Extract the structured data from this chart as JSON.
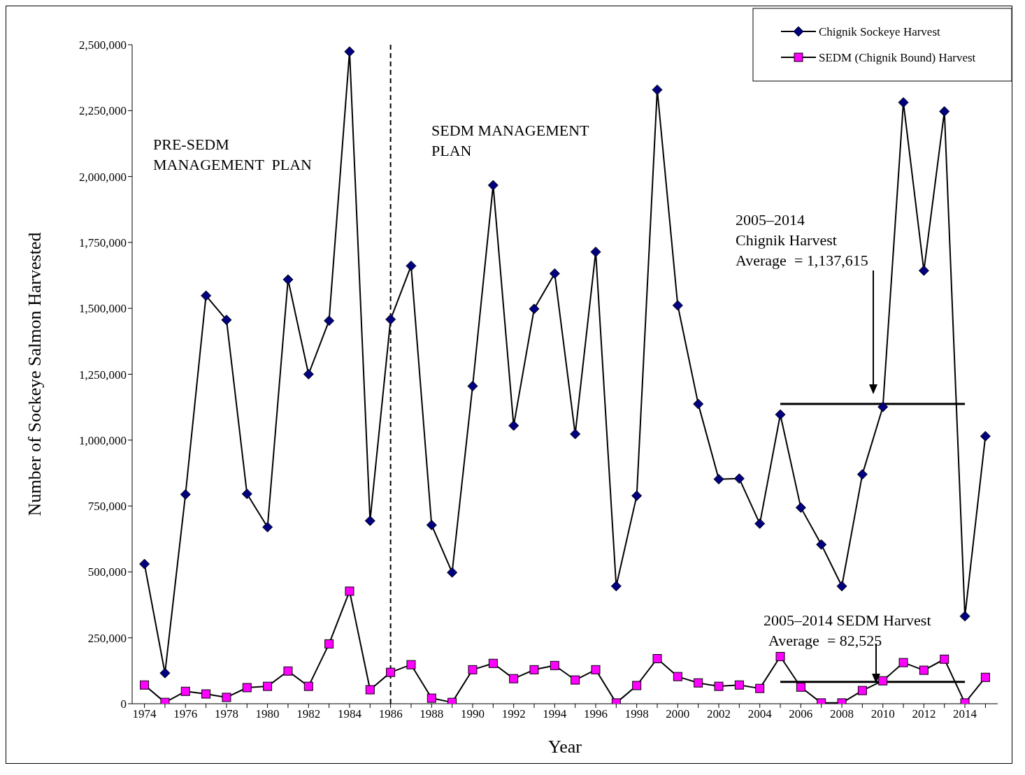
{
  "chart_data": {
    "type": "line",
    "xlabel": "Year",
    "ylabel": "Number of Sockeye Salmon Harvested",
    "x": [
      1974,
      1975,
      1976,
      1977,
      1978,
      1979,
      1980,
      1981,
      1982,
      1983,
      1984,
      1985,
      1986,
      1987,
      1988,
      1989,
      1990,
      1991,
      1992,
      1993,
      1994,
      1995,
      1996,
      1997,
      1998,
      1999,
      2000,
      2001,
      2002,
      2003,
      2004,
      2005,
      2006,
      2007,
      2008,
      2009,
      2010,
      2011,
      2012,
      2013,
      2014,
      2015
    ],
    "series": [
      {
        "name": "Chignik Sockeye Harvest",
        "color": "#000080",
        "marker": "diamond",
        "values": [
          530000,
          116000,
          794000,
          1548000,
          1456000,
          796000,
          670000,
          1609000,
          1250000,
          1453000,
          2474000,
          694000,
          1458000,
          1661000,
          678000,
          498000,
          1205000,
          1967000,
          1055000,
          1498000,
          1632000,
          1023000,
          1714000,
          446000,
          789000,
          2329000,
          1511000,
          1137000,
          852000,
          854000,
          683000,
          1097000,
          744000,
          604000,
          446000,
          870000,
          1126000,
          2281000,
          1643000,
          2247000,
          332000,
          1015000
        ]
      },
      {
        "name": "SEDM (Chignik Bound) Harvest",
        "color": "#ff00ff",
        "marker": "square",
        "values": [
          71000,
          5000,
          47000,
          37000,
          24000,
          61000,
          66000,
          124000,
          66000,
          227000,
          427000,
          53000,
          119000,
          148000,
          21000,
          5000,
          129000,
          153000,
          95000,
          129000,
          145000,
          90000,
          129000,
          3000,
          69000,
          171000,
          103000,
          79000,
          66000,
          71000,
          58000,
          179000,
          63000,
          3000,
          3000,
          50000,
          87000,
          156000,
          127000,
          169000,
          3000,
          100000
        ]
      },
      {
        "type": "line",
        "color": "#000000",
        "marker": "none",
        "values": [
          null,
          null,
          null,
          null,
          null,
          null,
          null,
          null,
          null,
          null,
          null,
          null,
          null,
          null,
          null,
          null,
          null,
          null,
          null,
          null,
          null,
          null,
          null,
          null,
          null,
          null,
          null,
          null,
          null,
          null,
          null,
          1137615,
          1137615,
          1137615,
          1137615,
          1137615,
          1137615,
          1137615,
          1137615,
          1137615,
          1137615,
          null
        ]
      },
      {
        "type": "line",
        "color": "#000000",
        "marker": "none",
        "values": [
          null,
          null,
          null,
          null,
          null,
          null,
          null,
          null,
          null,
          null,
          null,
          null,
          null,
          null,
          null,
          null,
          null,
          null,
          null,
          null,
          null,
          null,
          null,
          null,
          null,
          null,
          null,
          null,
          null,
          null,
          null,
          82525,
          82525,
          82525,
          82525,
          82525,
          82525,
          82525,
          82525,
          82525,
          82525,
          null
        ]
      }
    ],
    "xlim": [
      1973.4,
      2015.6
    ],
    "xticks": [
      1974,
      {
        "value": 1975,
        "label": null
      },
      1976,
      {
        "value": 1977,
        "label": null
      },
      1978,
      {
        "value": 1979,
        "label": null
      },
      1980,
      {
        "value": 1981,
        "label": null
      },
      1982,
      {
        "value": 1983,
        "label": null
      },
      1984,
      {
        "value": 1985,
        "label": null
      },
      1986,
      {
        "value": 1987,
        "label": null
      },
      1988,
      {
        "value": 1989,
        "label": null
      },
      1990,
      {
        "value": 1991,
        "label": null
      },
      1992,
      {
        "value": 1993,
        "label": null
      },
      1994,
      {
        "value": 1995,
        "label": null
      },
      1996,
      {
        "value": 1997,
        "label": null
      },
      1998,
      {
        "value": 1999,
        "label": null
      },
      2000,
      {
        "value": 2001,
        "label": null
      },
      2002,
      {
        "value": 2003,
        "label": null
      },
      2004,
      {
        "value": 2005,
        "label": null
      },
      2006,
      {
        "value": 2007,
        "label": null
      },
      2008,
      {
        "value": 2009,
        "label": null
      },
      2010,
      {
        "value": 2011,
        "label": null
      },
      2012,
      {
        "value": 2013,
        "label": null
      },
      2014,
      {
        "value": 2015,
        "label": null
      }
    ],
    "ylim": [
      0,
      2500000
    ],
    "yticks": [
      0,
      {
        "value": 250000,
        "label": "250,000"
      },
      {
        "value": 500000,
        "label": "500,000"
      },
      {
        "value": 750000,
        "label": "750,000"
      },
      {
        "value": 1000000,
        "label": "1,000,000"
      },
      {
        "value": 1250000,
        "label": "1,250,000"
      },
      {
        "value": 1500000,
        "label": "1,500,000"
      },
      {
        "value": 1750000,
        "label": "1,750,000"
      },
      {
        "value": 2000000,
        "label": "2,000,000"
      },
      {
        "value": 2250000,
        "label": "2,250,000"
      },
      {
        "value": 2500000,
        "label": "2,500,000"
      }
    ],
    "ref_lines": [
      {
        "axis": "x",
        "value": 1986,
        "color": "#000000",
        "line_style": "dashed"
      }
    ],
    "annotations": [
      "PRE-SEDM\nMANAGEMENT  PLAN",
      "SEDM MANAGEMENT\nPLAN",
      "2005–2014\nChignik Harvest\nAverage  = 1,137,615",
      "2005–2014 SEDM Harvest\nAverage  = 82,525"
    ],
    "legend": "top right",
    "grid": false,
    "line_style": "solid"
  }
}
